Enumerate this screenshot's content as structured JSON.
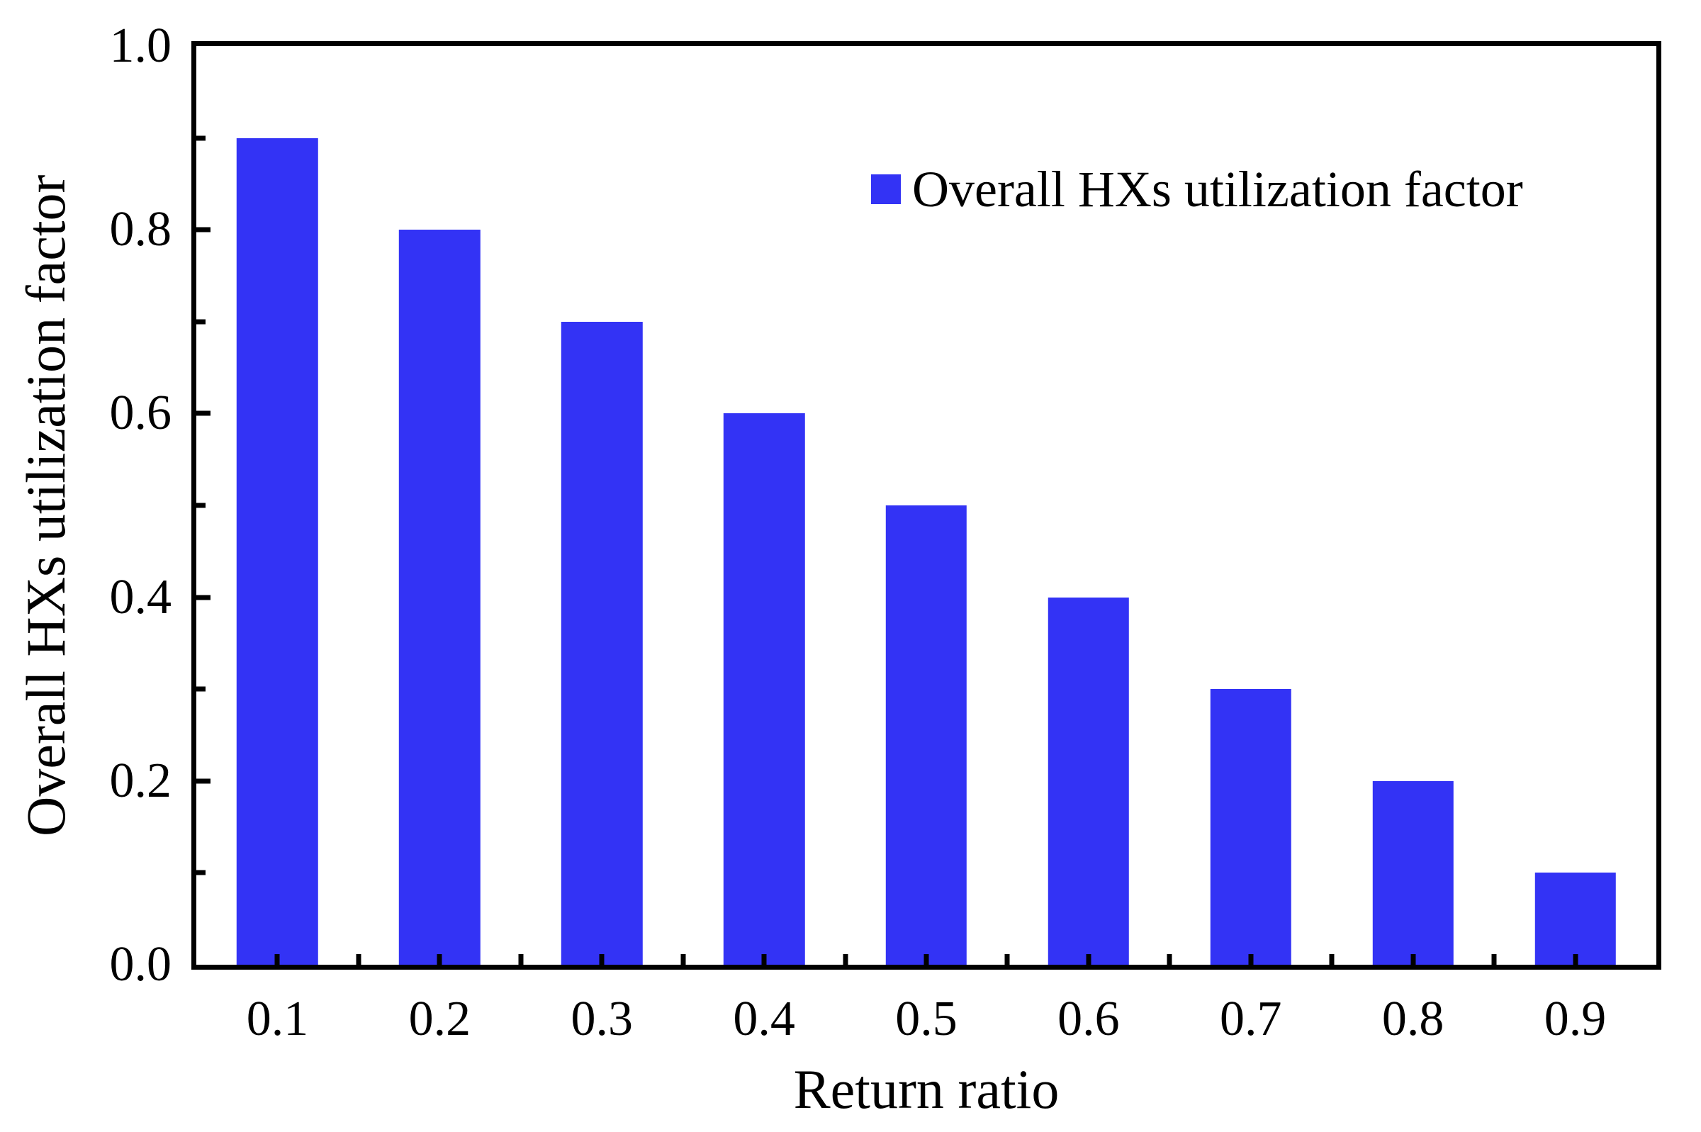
{
  "chart_data": {
    "type": "bar",
    "title": "",
    "categories": [
      "0.1",
      "0.2",
      "0.3",
      "0.4",
      "0.5",
      "0.6",
      "0.7",
      "0.8",
      "0.9"
    ],
    "values": [
      0.9,
      0.8,
      0.7,
      0.6,
      0.5,
      0.4,
      0.3,
      0.2,
      0.1
    ],
    "xlabel": "Return ratio",
    "ylabel": "Overall HXs utilization factor",
    "ylim": [
      0.0,
      1.0
    ],
    "y_axis": {
      "major_tick_values": [
        0.0,
        0.2,
        0.4,
        0.6,
        0.8,
        1.0
      ],
      "major_tick_labels": [
        "0.0",
        "0.2",
        "0.4",
        "0.6",
        "0.8",
        "1.0"
      ],
      "minor_tick_values": [
        0.1,
        0.3,
        0.5,
        0.7,
        0.9
      ]
    },
    "grid": false,
    "bar_color": "#3333f5",
    "axis_color": "#000000",
    "background_color": "#ffffff",
    "bar_width_fraction": 0.5,
    "tick_direction": "in",
    "legend": {
      "position": "top-center-inside",
      "entries": [
        {
          "label": "Overall HXs utilization factor",
          "swatch_color": "#3333f5"
        }
      ]
    }
  }
}
